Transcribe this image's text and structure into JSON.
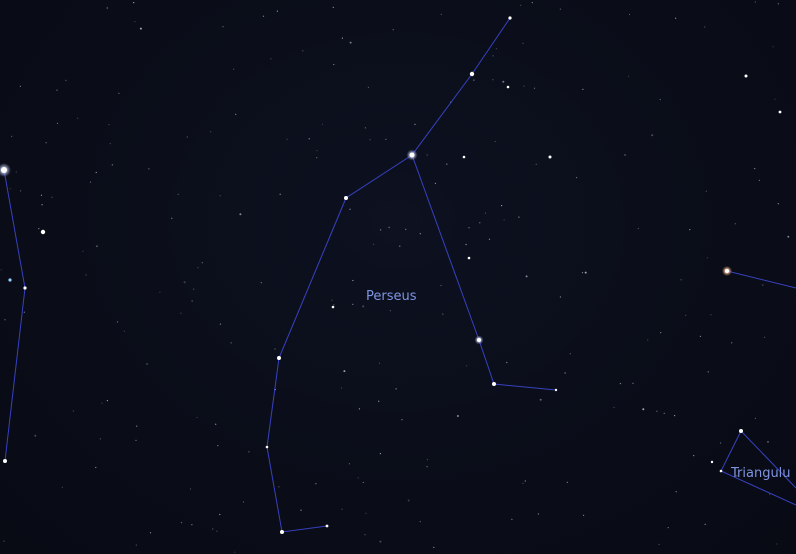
{
  "view": {
    "background_color": "#0a0d18",
    "line_color": "#3a44c8",
    "label_color": "#7f93e0"
  },
  "constellations": [
    {
      "key": "perseus",
      "name": "Perseus"
    },
    {
      "key": "triangulum",
      "name": "Triangulu"
    }
  ]
}
